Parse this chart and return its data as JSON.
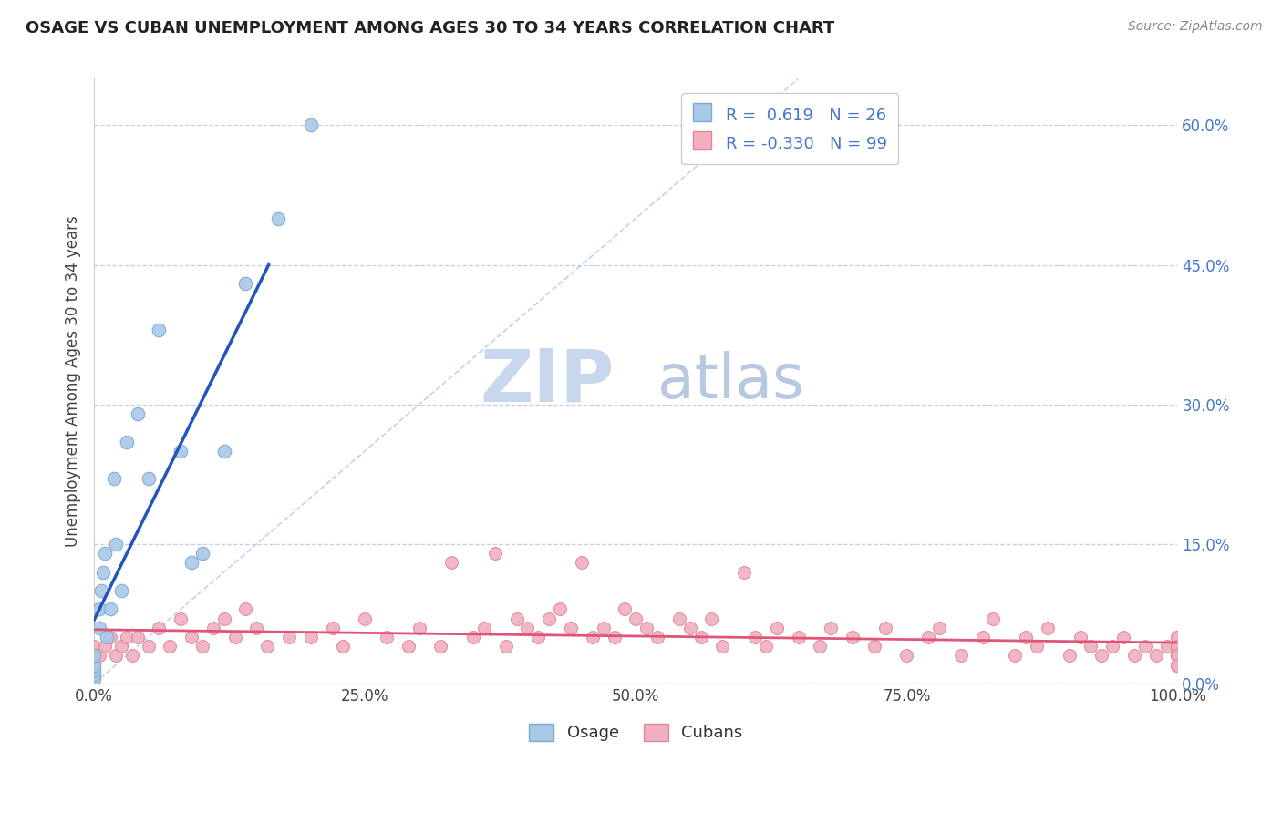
{
  "title": "OSAGE VS CUBAN UNEMPLOYMENT AMONG AGES 30 TO 34 YEARS CORRELATION CHART",
  "source_text": "Source: ZipAtlas.com",
  "ylabel": "Unemployment Among Ages 30 to 34 years",
  "xlim": [
    0,
    1
  ],
  "ylim": [
    0,
    0.65
  ],
  "yticks": [
    0,
    0.15,
    0.3,
    0.45,
    0.6
  ],
  "ytick_labels": [
    "0.0%",
    "15.0%",
    "30.0%",
    "45.0%",
    "60.0%"
  ],
  "xticks": [
    0,
    0.25,
    0.5,
    0.75,
    1.0
  ],
  "xtick_labels": [
    "0.0%",
    "25.0%",
    "50.0%",
    "75.0%",
    "100.0%"
  ],
  "background_color": "#ffffff",
  "grid_color": "#c8c8d8",
  "watermark_zip": "ZIP",
  "watermark_atlas": "atlas",
  "watermark_color_zip": "#c8d8ec",
  "watermark_color_atlas": "#b8c8e0",
  "legend_R1": "0.619",
  "legend_N1": "26",
  "legend_R2": "-0.330",
  "legend_N2": "99",
  "osage_color": "#a8c8e8",
  "osage_edge": "#80a8d0",
  "cuban_color": "#f0b0c0",
  "cuban_edge": "#e08898",
  "osage_line_color": "#2255bb",
  "cuban_line_color": "#e05575",
  "diag_line_color": "#b0c8e8",
  "ytick_color": "#4477cc",
  "xtick_color": "#444444",
  "osage_points_x": [
    0.0,
    0.0,
    0.0,
    0.0,
    0.0,
    0.005,
    0.005,
    0.007,
    0.008,
    0.01,
    0.012,
    0.015,
    0.018,
    0.02,
    0.025,
    0.03,
    0.04,
    0.05,
    0.06,
    0.08,
    0.09,
    0.1,
    0.12,
    0.14,
    0.17,
    0.2
  ],
  "osage_points_y": [
    0.005,
    0.01,
    0.015,
    0.02,
    0.03,
    0.06,
    0.08,
    0.1,
    0.12,
    0.14,
    0.05,
    0.08,
    0.22,
    0.15,
    0.1,
    0.26,
    0.29,
    0.22,
    0.38,
    0.25,
    0.13,
    0.14,
    0.25,
    0.43,
    0.5,
    0.6
  ],
  "cuban_points_x": [
    0.0,
    0.0,
    0.0,
    0.005,
    0.01,
    0.015,
    0.02,
    0.025,
    0.03,
    0.035,
    0.04,
    0.05,
    0.06,
    0.07,
    0.08,
    0.09,
    0.1,
    0.11,
    0.12,
    0.13,
    0.14,
    0.15,
    0.16,
    0.18,
    0.2,
    0.22,
    0.23,
    0.25,
    0.27,
    0.29,
    0.3,
    0.32,
    0.33,
    0.35,
    0.36,
    0.37,
    0.38,
    0.39,
    0.4,
    0.41,
    0.42,
    0.43,
    0.44,
    0.45,
    0.46,
    0.47,
    0.48,
    0.49,
    0.5,
    0.51,
    0.52,
    0.54,
    0.55,
    0.56,
    0.57,
    0.58,
    0.6,
    0.61,
    0.62,
    0.63,
    0.65,
    0.67,
    0.68,
    0.7,
    0.72,
    0.73,
    0.75,
    0.77,
    0.78,
    0.8,
    0.82,
    0.83,
    0.85,
    0.86,
    0.87,
    0.88,
    0.9,
    0.91,
    0.92,
    0.93,
    0.94,
    0.95,
    0.96,
    0.97,
    0.98,
    0.99,
    1.0,
    1.0,
    1.0,
    1.0,
    1.0,
    1.0,
    1.0,
    1.0,
    1.0,
    1.0,
    1.0,
    1.0,
    1.0
  ],
  "cuban_points_y": [
    0.02,
    0.03,
    0.04,
    0.03,
    0.04,
    0.05,
    0.03,
    0.04,
    0.05,
    0.03,
    0.05,
    0.04,
    0.06,
    0.04,
    0.07,
    0.05,
    0.04,
    0.06,
    0.07,
    0.05,
    0.08,
    0.06,
    0.04,
    0.05,
    0.05,
    0.06,
    0.04,
    0.07,
    0.05,
    0.04,
    0.06,
    0.04,
    0.13,
    0.05,
    0.06,
    0.14,
    0.04,
    0.07,
    0.06,
    0.05,
    0.07,
    0.08,
    0.06,
    0.13,
    0.05,
    0.06,
    0.05,
    0.08,
    0.07,
    0.06,
    0.05,
    0.07,
    0.06,
    0.05,
    0.07,
    0.04,
    0.12,
    0.05,
    0.04,
    0.06,
    0.05,
    0.04,
    0.06,
    0.05,
    0.04,
    0.06,
    0.03,
    0.05,
    0.06,
    0.03,
    0.05,
    0.07,
    0.03,
    0.05,
    0.04,
    0.06,
    0.03,
    0.05,
    0.04,
    0.03,
    0.04,
    0.05,
    0.03,
    0.04,
    0.03,
    0.04,
    0.02,
    0.03,
    0.04,
    0.05,
    0.02,
    0.03,
    0.04,
    0.05,
    0.02,
    0.03,
    0.04,
    0.03,
    0.02
  ]
}
